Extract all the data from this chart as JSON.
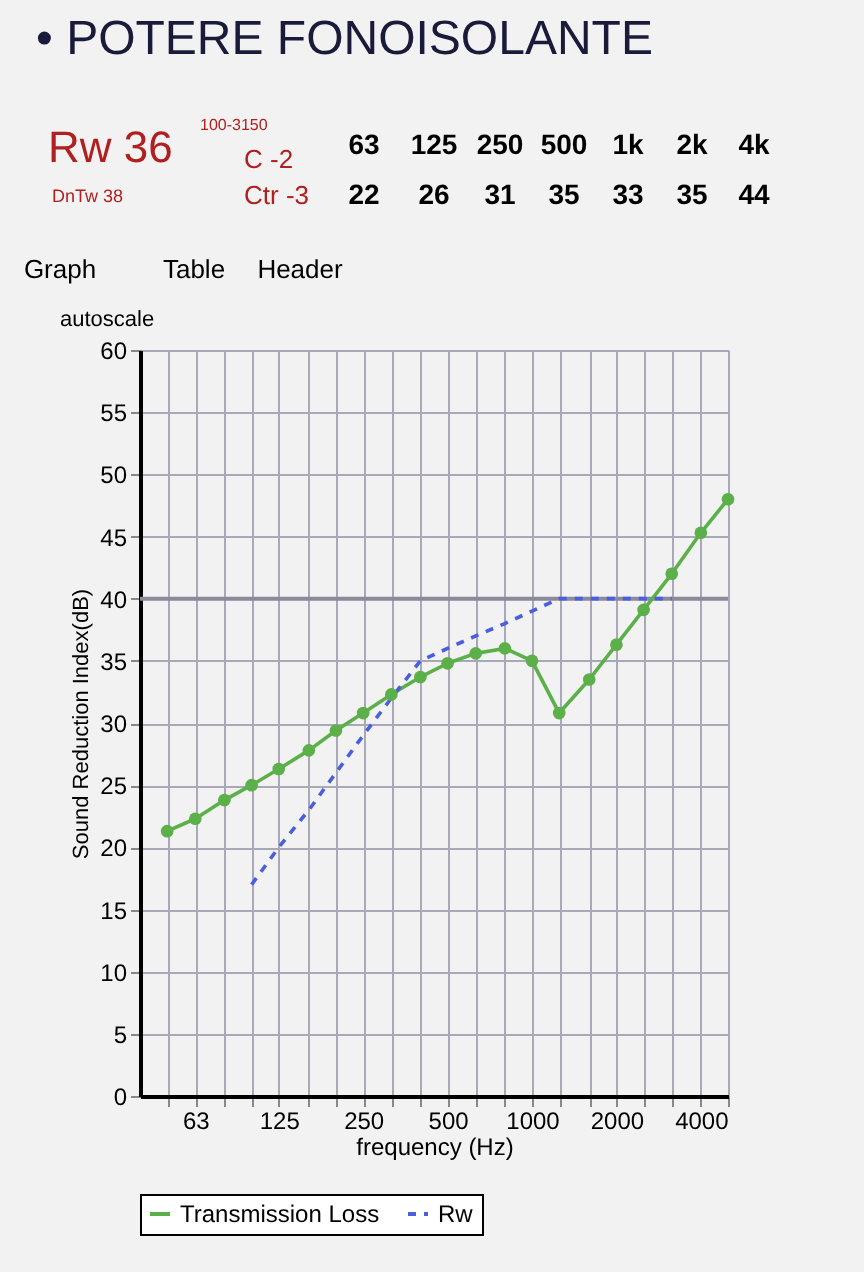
{
  "chart_data": {
    "type": "line",
    "title": "• POTERE FONOISOLANTE",
    "xlabel": "frequency (Hz)",
    "ylabel": "Sound Reduction Index(dB)",
    "annotations": [
      "Rw 36",
      "DnTw 38",
      "100-3150",
      "C -2",
      "Ctr -3",
      "63",
      "125",
      "250",
      "500",
      "1k",
      "2k",
      "4k",
      "22",
      "26",
      "31",
      "35",
      "33",
      "35",
      "44",
      "Graph",
      "Table",
      "Header",
      "autoscale"
    ],
    "x": [
      50,
      63,
      80,
      100,
      125,
      160,
      200,
      250,
      315,
      400,
      500,
      630,
      800,
      1000,
      1250,
      1600,
      2000,
      2500,
      3150,
      4000,
      5000
    ],
    "series": [
      {
        "name": "Transmission Loss",
        "color": "#5cb04a",
        "values": [
          21.3,
          22.3,
          23.8,
          25,
          26.3,
          27.8,
          29.4,
          30.8,
          32.3,
          33.7,
          34.8,
          35.6,
          36.0,
          35.0,
          30.8,
          33.5,
          36.3,
          39.1,
          42,
          45.3,
          48
        ]
      },
      {
        "name": "Rw",
        "color": "#4a5ee0",
        "line_style": "dashed",
        "marker": "none",
        "x": [
          100,
          125,
          160,
          200,
          250,
          315,
          400,
          500,
          630,
          800,
          1000,
          1250,
          1600,
          2000,
          2500,
          3150
        ],
        "values": [
          17,
          20,
          23,
          26,
          29,
          32,
          35,
          36,
          37,
          38,
          39,
          40,
          40,
          40,
          40,
          40
        ]
      }
    ],
    "marker": "circle",
    "line_style": "solid",
    "log": "x",
    "grid": true,
    "legend": "bottom",
    "xlim": [
      40,
      5000
    ],
    "xticks": [
      {
        "value": 50,
        "label": null
      },
      63,
      {
        "value": 80,
        "label": null
      },
      {
        "value": 100,
        "label": null
      },
      125,
      {
        "value": 160,
        "label": null
      },
      {
        "value": 200,
        "label": null
      },
      250,
      {
        "value": 315,
        "label": null
      },
      {
        "value": 400,
        "label": null
      },
      500,
      {
        "value": 630,
        "label": null
      },
      {
        "value": 800,
        "label": null
      },
      1000,
      {
        "value": 1250,
        "label": null
      },
      {
        "value": 1600,
        "label": null
      },
      2000,
      {
        "value": 2500,
        "label": null
      },
      {
        "value": 3150,
        "label": null
      },
      4000,
      {
        "value": 5000,
        "label": null
      }
    ],
    "ylim": [
      0,
      60
    ],
    "yticks": [
      0,
      5,
      10,
      15,
      20,
      25,
      30,
      35,
      40,
      45,
      50,
      55,
      60
    ],
    "ref_lines": [
      {
        "axis": "y",
        "value": 40,
        "color": "#8a8a9a"
      }
    ]
  }
}
